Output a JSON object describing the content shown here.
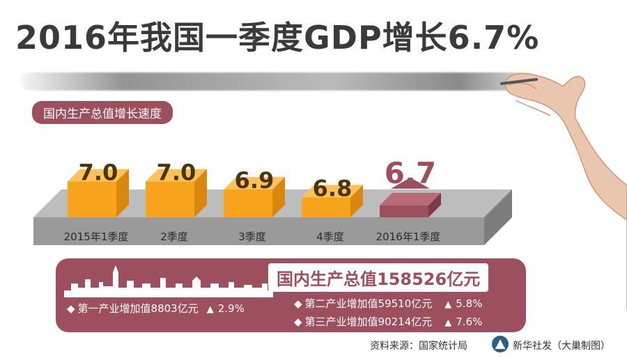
{
  "title": "2016年我国一季度GDP增长6.7%",
  "chart_data": {
    "type": "bar",
    "title": "国内生产总值增长速度",
    "categories": [
      "2015年1季度",
      "2季度",
      "3季度",
      "4季度",
      "2016年1季度"
    ],
    "values": [
      7.0,
      7.0,
      6.9,
      6.8,
      6.7
    ],
    "data_labels": [
      "7.0",
      "7.0",
      "6.9",
      "6.8",
      "6.7"
    ],
    "xlabel": "",
    "ylabel": "",
    "grid": false,
    "colors": {
      "past": "#f7a31c",
      "current": "#9e4f5e"
    }
  },
  "summary": {
    "total": "国内生产总值158526亿元",
    "industries": [
      {
        "name": "第一产业增加值8803亿元",
        "growth": "2.9%"
      },
      {
        "name": "第二产业增加值59510亿元",
        "growth": "5.8%"
      },
      {
        "name": "第三产业增加值90214亿元",
        "growth": "7.6%"
      }
    ]
  },
  "footer": {
    "source": "资料来源：国家统计局",
    "credit": "新华社发（大巢制图）"
  }
}
